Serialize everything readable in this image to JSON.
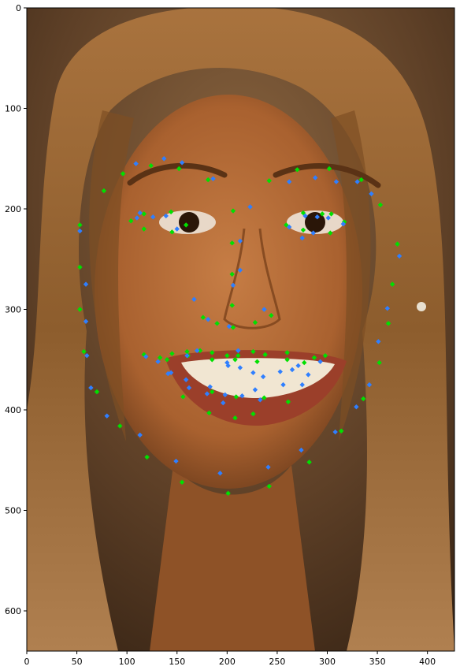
{
  "axes": {
    "x_ticks": [
      0,
      50,
      100,
      150,
      200,
      250,
      300,
      350,
      400
    ],
    "y_ticks": [
      0,
      100,
      200,
      300,
      400,
      500,
      600
    ],
    "xlim": [
      0,
      427
    ],
    "ylim": [
      640,
      0
    ]
  },
  "photo": {
    "subject": "Smiling woman with long light-brown hair, frontal portrait",
    "background_color": "#6b4a2c",
    "skin_color": "#b46e3d",
    "hair_color": "#8a5a2a"
  },
  "chart_data": {
    "type": "scatter",
    "title": "",
    "xlabel": "",
    "ylabel": "",
    "xlim": [
      0,
      427
    ],
    "ylim": [
      640,
      0
    ],
    "grid": false,
    "series": [
      {
        "color": "#00e000",
        "marker": "diamond",
        "points": [
          [
            96,
            165
          ],
          [
            77,
            182
          ],
          [
            124,
            157
          ],
          [
            152,
            160
          ],
          [
            181,
            171
          ],
          [
            242,
            172
          ],
          [
            270,
            161
          ],
          [
            302,
            160
          ],
          [
            334,
            171
          ],
          [
            353,
            196
          ],
          [
            53,
            216
          ],
          [
            104,
            212
          ],
          [
            117,
            205
          ],
          [
            144,
            203
          ],
          [
            159,
            216
          ],
          [
            145,
            223
          ],
          [
            117,
            220
          ],
          [
            259,
            216
          ],
          [
            276,
            204
          ],
          [
            295,
            205
          ],
          [
            304,
            205
          ],
          [
            317,
            213
          ],
          [
            303,
            224
          ],
          [
            276,
            221
          ],
          [
            206,
            202
          ],
          [
            205,
            234
          ],
          [
            205,
            265
          ],
          [
            205,
            296
          ],
          [
            206,
            318
          ],
          [
            176,
            308
          ],
          [
            190,
            314
          ],
          [
            228,
            313
          ],
          [
            244,
            306
          ],
          [
            53,
            258
          ],
          [
            53,
            300
          ],
          [
            57,
            342
          ],
          [
            70,
            382
          ],
          [
            93,
            416
          ],
          [
            120,
            447
          ],
          [
            155,
            472
          ],
          [
            201,
            483
          ],
          [
            242,
            476
          ],
          [
            282,
            452
          ],
          [
            314,
            421
          ],
          [
            336,
            389
          ],
          [
            352,
            353
          ],
          [
            361,
            314
          ],
          [
            365,
            275
          ],
          [
            370,
            235
          ],
          [
            117,
            345
          ],
          [
            133,
            348
          ],
          [
            145,
            344
          ],
          [
            160,
            342
          ],
          [
            173,
            341
          ],
          [
            185,
            343
          ],
          [
            200,
            346
          ],
          [
            211,
            346
          ],
          [
            226,
            342
          ],
          [
            238,
            345
          ],
          [
            260,
            343
          ],
          [
            287,
            348
          ],
          [
            298,
            346
          ],
          [
            140,
            350
          ],
          [
            161,
            346
          ],
          [
            185,
            350
          ],
          [
            208,
            350
          ],
          [
            230,
            352
          ],
          [
            260,
            350
          ],
          [
            277,
            353
          ],
          [
            156,
            387
          ],
          [
            182,
            403
          ],
          [
            208,
            408
          ],
          [
            226,
            404
          ],
          [
            261,
            392
          ],
          [
            185,
            382
          ],
          [
            209,
            387
          ],
          [
            237,
            388
          ]
        ]
      },
      {
        "color": "#2f7fff",
        "marker": "diamond",
        "points": [
          [
            109,
            155
          ],
          [
            137,
            150
          ],
          [
            155,
            154
          ],
          [
            186,
            170
          ],
          [
            223,
            198
          ],
          [
            262,
            173
          ],
          [
            288,
            169
          ],
          [
            309,
            173
          ],
          [
            330,
            173
          ],
          [
            344,
            185
          ],
          [
            53,
            222
          ],
          [
            113,
            204
          ],
          [
            126,
            208
          ],
          [
            139,
            207
          ],
          [
            150,
            220
          ],
          [
            110,
            209
          ],
          [
            262,
            218
          ],
          [
            278,
            207
          ],
          [
            290,
            208
          ],
          [
            301,
            209
          ],
          [
            316,
            215
          ],
          [
            275,
            229
          ],
          [
            286,
            224
          ],
          [
            213,
            232
          ],
          [
            213,
            261
          ],
          [
            206,
            276
          ],
          [
            202,
            317
          ],
          [
            167,
            290
          ],
          [
            181,
            310
          ],
          [
            211,
            341
          ],
          [
            237,
            300
          ],
          [
            59,
            275
          ],
          [
            59,
            312
          ],
          [
            60,
            346
          ],
          [
            64,
            378
          ],
          [
            80,
            406
          ],
          [
            113,
            425
          ],
          [
            149,
            451
          ],
          [
            193,
            463
          ],
          [
            241,
            457
          ],
          [
            274,
            440
          ],
          [
            308,
            422
          ],
          [
            329,
            397
          ],
          [
            342,
            375
          ],
          [
            351,
            332
          ],
          [
            360,
            299
          ],
          [
            372,
            247
          ],
          [
            119,
            347
          ],
          [
            131,
            352
          ],
          [
            141,
            364
          ],
          [
            160,
            346
          ],
          [
            170,
            341
          ],
          [
            201,
            356
          ],
          [
            213,
            358
          ],
          [
            226,
            363
          ],
          [
            236,
            367
          ],
          [
            253,
            362
          ],
          [
            265,
            360
          ],
          [
            271,
            356
          ],
          [
            281,
            365
          ],
          [
            293,
            352
          ],
          [
            144,
            363
          ],
          [
            159,
            370
          ],
          [
            180,
            384
          ],
          [
            198,
            385
          ],
          [
            215,
            386
          ],
          [
            233,
            390
          ],
          [
            256,
            375
          ],
          [
            275,
            375
          ],
          [
            228,
            380
          ],
          [
            162,
            378
          ],
          [
            183,
            377
          ],
          [
            196,
            393
          ],
          [
            200,
            353
          ]
        ]
      }
    ]
  }
}
